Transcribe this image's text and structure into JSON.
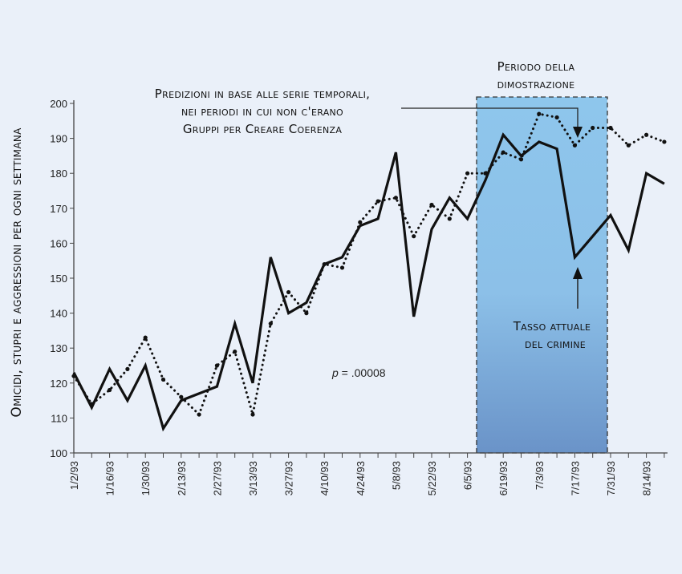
{
  "chart_data": {
    "type": "line",
    "title": "",
    "xlabel": "",
    "ylabel": "Omicidi, stupri e aggressioni per ogni settimana",
    "ylim": [
      100,
      200
    ],
    "yticks": [
      100,
      110,
      120,
      130,
      140,
      150,
      160,
      170,
      180,
      190,
      200
    ],
    "xtick_labels": [
      "1/2/93",
      "1/16/93",
      "1/30/93",
      "2/13/93",
      "2/27/93",
      "3/13/93",
      "3/27/93",
      "4/10/93",
      "4/24/93",
      "5/8/93",
      "5/22/93",
      "6/5/93",
      "6/19/93",
      "7/3/93",
      "7/17/93",
      "7/31/93",
      "8/14/93"
    ],
    "x": [
      "1/2/93",
      "1/9/93",
      "1/16/93",
      "1/23/93",
      "1/30/93",
      "2/6/93",
      "2/13/93",
      "2/20/93",
      "2/27/93",
      "3/6/93",
      "3/13/93",
      "3/20/93",
      "3/27/93",
      "4/3/93",
      "4/10/93",
      "4/17/93",
      "4/24/93",
      "5/1/93",
      "5/8/93",
      "5/15/93",
      "5/22/93",
      "5/29/93",
      "6/5/93",
      "6/12/93",
      "6/19/93",
      "6/26/93",
      "7/3/93",
      "7/10/93",
      "7/17/93",
      "7/24/93",
      "7/31/93",
      "8/7/93",
      "8/14/93",
      "8/21/93"
    ],
    "series": [
      {
        "style": "solid",
        "values": [
          123,
          113,
          124,
          115,
          125,
          107,
          115,
          117,
          119,
          137,
          120,
          156,
          140,
          143,
          154,
          156,
          165,
          167,
          186,
          139,
          164,
          173,
          167,
          178,
          191,
          185,
          189,
          187,
          156,
          162,
          168,
          158,
          180,
          177
        ]
      },
      {
        "style": "dotted",
        "values": [
          122,
          114,
          118,
          124,
          133,
          121,
          116,
          111,
          125,
          129,
          111,
          137,
          146,
          140,
          154,
          153,
          166,
          172,
          173,
          162,
          171,
          167,
          180,
          180,
          186,
          184,
          197,
          196,
          188,
          193,
          193,
          188,
          191,
          189
        ]
      }
    ],
    "grid": false,
    "annotations": {
      "prediction": [
        "Predizioni in base alle serie temporali,",
        "nei periodi in cui non c'erano",
        "Gruppi per Creare Coerenza"
      ],
      "period": [
        "Periodo della",
        "dimostrazione"
      ],
      "actual": [
        "Tasso attuale",
        "del crimine"
      ],
      "p_label": "p",
      "p_value": " = .00008"
    },
    "colors": {
      "background": "#eaf0f9",
      "period_top": "#8ec6ec",
      "period_bottom": "#6a93c8",
      "line": "#111111"
    }
  }
}
